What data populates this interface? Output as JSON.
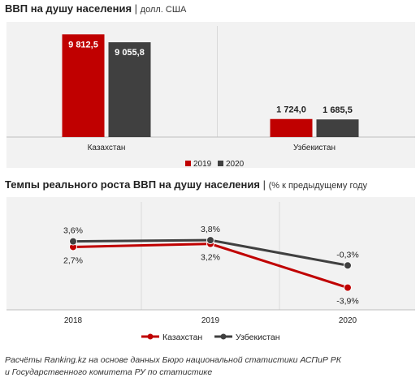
{
  "chart_data": [
    {
      "type": "bar",
      "title": "ВВП на душу населения",
      "unit": "долл. США",
      "categories": [
        "Казахстан",
        "Узбекистан"
      ],
      "series": [
        {
          "name": "2019",
          "values": [
            9812.5,
            1724.0
          ],
          "labels": [
            "9 812,5",
            "1 724,0"
          ],
          "color": "#c00000"
        },
        {
          "name": "2020",
          "values": [
            9055.8,
            1685.5
          ],
          "labels": [
            "9 055,8",
            "1 685,5"
          ],
          "color": "#404040"
        }
      ],
      "ylim": [
        0,
        11000
      ],
      "grid": false,
      "legend": "bottom"
    },
    {
      "type": "line",
      "title": "Темпы реального роста ВВП на душу населения",
      "unit": "(% к предыдущему году",
      "x": [
        "2018",
        "2019",
        "2020"
      ],
      "series": [
        {
          "name": "Казахстан",
          "values": [
            2.7,
            3.2,
            -3.9
          ],
          "labels": [
            "2,7%",
            "3,2%",
            "-3,9%"
          ],
          "color": "#c00000"
        },
        {
          "name": "Узбекистан",
          "values": [
            3.6,
            3.8,
            -0.3
          ],
          "labels": [
            "3,6%",
            "3,8%",
            "-0,3%"
          ],
          "color": "#404040"
        }
      ],
      "ylim": [
        -6,
        6
      ],
      "grid": false,
      "legend": "bottom"
    }
  ],
  "source_note": {
    "line1": "Расчёты Ranking.kz на основе данных Бюро национальной статистики АСПиР РК",
    "line2": "и Государственного комитета РУ по статистике"
  }
}
